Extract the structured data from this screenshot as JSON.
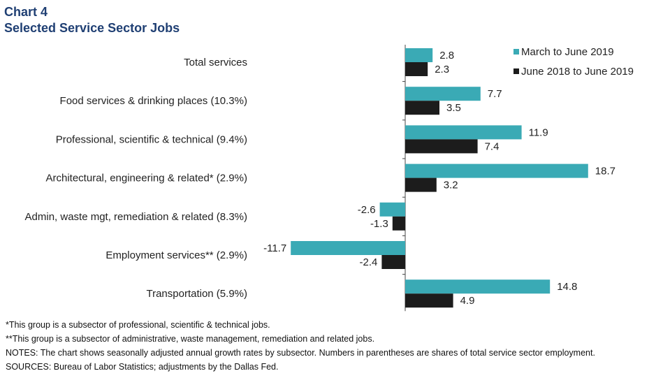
{
  "header": {
    "chart_number": "Chart 4",
    "title": "Selected Service Sector Jobs"
  },
  "chart_data": {
    "type": "bar",
    "orientation": "horizontal",
    "categories": [
      "Total services",
      "Food services & drinking places (10.3%)",
      "Professional, scientific & technical (9.4%)",
      "Architectural, engineering & related* (2.9%)",
      "Admin, waste mgt, remediation & related (8.3%)",
      "Employment services** (2.9%)",
      "Transportation (5.9%)"
    ],
    "series": [
      {
        "name": "March to June 2019",
        "color": "#3aaab5",
        "values": [
          2.8,
          7.7,
          11.9,
          18.7,
          -2.6,
          -11.7,
          14.8
        ]
      },
      {
        "name": "June 2018 to June 2019",
        "color": "#1c1c1c",
        "values": [
          2.3,
          3.5,
          7.4,
          3.2,
          -1.3,
          -2.4,
          4.9
        ]
      }
    ],
    "value_labels": [
      [
        "2.8",
        "7.7",
        "11.9",
        "18.7",
        "-2.6",
        "-11.7",
        "14.8"
      ],
      [
        "2.3",
        "3.5",
        "7.4",
        "3.2",
        "-1.3",
        "-2.4",
        "4.9"
      ]
    ],
    "legend_position": "top-right",
    "grid": false
  },
  "notes": {
    "footnote1": "*This group is a subsector of professional, scientific & technical jobs.",
    "footnote2": "**This group is a subsector of administrative, waste management, remediation and related jobs.",
    "notes_line": "NOTES: The chart shows seasonally adjusted annual growth rates by subsector. Numbers in parentheses are shares of total service sector employment.",
    "sources_line": "SOURCES: Bureau of Labor Statistics; adjustments by the Dallas Fed."
  }
}
